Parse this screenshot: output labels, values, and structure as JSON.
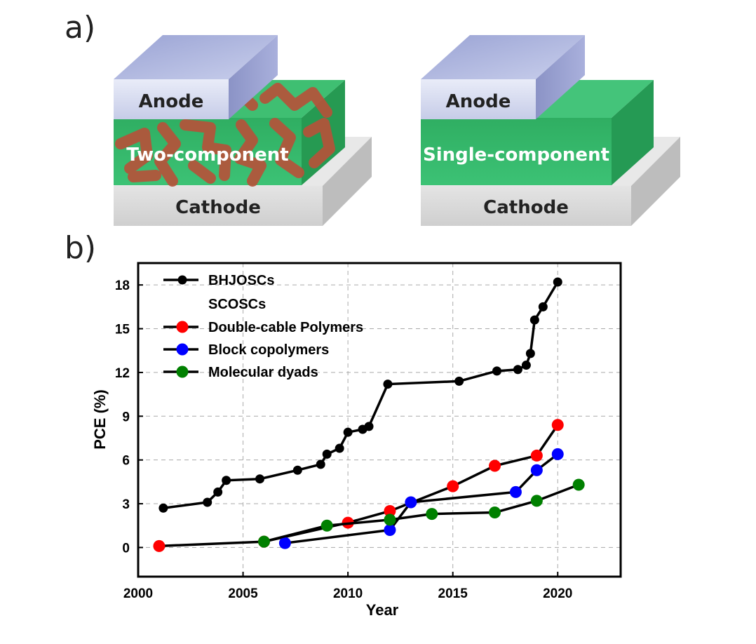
{
  "panels": {
    "a_label": "a)",
    "b_label": "b)"
  },
  "devices": {
    "left": {
      "anode": "Anode",
      "active": "Two-component",
      "cathode": "Cathode"
    },
    "right": {
      "anode": "Anode",
      "active": "Single-component",
      "cathode": "Cathode"
    },
    "colors": {
      "anode": "#c5cbe6",
      "active": "#36b86a",
      "donor_phase": "#b5533a",
      "cathode": "#dcdcdc"
    }
  },
  "chart_data": {
    "type": "line",
    "title": "",
    "xlabel": "Year",
    "ylabel": "PCE (%)",
    "xlim": [
      2000,
      2023
    ],
    "ylim": [
      -2,
      19.5
    ],
    "xticks": [
      2000,
      2005,
      2010,
      2015,
      2020
    ],
    "yticks": [
      0,
      3,
      6,
      9,
      12,
      15,
      18
    ],
    "grid": true,
    "legend_position": "top-left",
    "legend_subheading": "SCOSCs",
    "series": [
      {
        "name": "BHJOSCs",
        "color": "#000000",
        "marker_size": "small",
        "points": [
          [
            2001.2,
            2.7
          ],
          [
            2003.3,
            3.1
          ],
          [
            2003.8,
            3.8
          ],
          [
            2004.2,
            4.6
          ],
          [
            2005.8,
            4.7
          ],
          [
            2007.6,
            5.3
          ],
          [
            2008.7,
            5.7
          ],
          [
            2009.0,
            6.4
          ],
          [
            2009.6,
            6.8
          ],
          [
            2010.0,
            7.9
          ],
          [
            2010.7,
            8.1
          ],
          [
            2011.0,
            8.3
          ],
          [
            2011.9,
            11.2
          ],
          [
            2015.3,
            11.4
          ],
          [
            2017.1,
            12.1
          ],
          [
            2018.1,
            12.2
          ],
          [
            2018.5,
            12.5
          ],
          [
            2018.7,
            13.3
          ],
          [
            2018.9,
            15.6
          ],
          [
            2019.3,
            16.5
          ],
          [
            2020.0,
            18.2
          ]
        ]
      },
      {
        "name": "Double-cable Polymers",
        "color": "#ff0000",
        "marker_size": "large",
        "points": [
          [
            2001.0,
            0.1
          ],
          [
            2006.0,
            0.4
          ],
          [
            2010.0,
            1.7
          ],
          [
            2012.0,
            2.5
          ],
          [
            2015.0,
            4.2
          ],
          [
            2017.0,
            5.6
          ],
          [
            2019.0,
            6.3
          ],
          [
            2020.0,
            8.4
          ]
        ]
      },
      {
        "name": "Block copolymers",
        "color": "#0000ff",
        "marker_size": "large",
        "points": [
          [
            2007.0,
            0.3
          ],
          [
            2012.0,
            1.2
          ],
          [
            2013.0,
            3.1
          ],
          [
            2018.0,
            3.8
          ],
          [
            2019.0,
            5.3
          ],
          [
            2020.0,
            6.4
          ]
        ]
      },
      {
        "name": "Molecular dyads",
        "color": "#008000",
        "marker_size": "large",
        "points": [
          [
            2006.0,
            0.4
          ],
          [
            2009.0,
            1.5
          ],
          [
            2012.0,
            1.9
          ],
          [
            2014.0,
            2.3
          ],
          [
            2017.0,
            2.4
          ],
          [
            2019.0,
            3.2
          ],
          [
            2021.0,
            4.3
          ]
        ]
      }
    ]
  }
}
